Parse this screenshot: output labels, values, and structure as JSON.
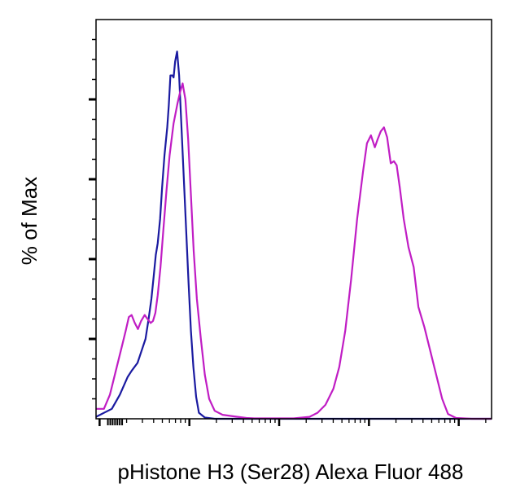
{
  "chart_data": {
    "type": "line",
    "title": "",
    "xlabel": "pHistone H3 (Ser28) Alexa Fluor 488",
    "ylabel": "% of Max",
    "x_scale": "log",
    "xlim": [
      0,
      100
    ],
    "ylim": [
      0,
      100
    ],
    "tick_labels_shown": false,
    "grid": false,
    "legend": "none",
    "series": [
      {
        "color": "#1a1aa0",
        "points": [
          [
            0.0,
            0.5
          ],
          [
            4.0,
            2.5
          ],
          [
            6.0,
            6.0
          ],
          [
            8.0,
            10.5
          ],
          [
            9.0,
            12.0
          ],
          [
            10.5,
            14.0
          ],
          [
            11.5,
            17.0
          ],
          [
            12.5,
            20.0
          ],
          [
            13.3,
            25.0
          ],
          [
            14.0,
            30.0
          ],
          [
            14.6,
            36.0
          ],
          [
            15.1,
            41.0
          ],
          [
            15.6,
            44.0
          ],
          [
            16.2,
            50.0
          ],
          [
            16.7,
            58.0
          ],
          [
            17.3,
            66.0
          ],
          [
            18.0,
            73.0
          ],
          [
            18.4,
            78.5
          ],
          [
            18.8,
            86.0
          ],
          [
            19.3,
            86.0
          ],
          [
            19.6,
            85.5
          ],
          [
            20.0,
            89.5
          ],
          [
            20.5,
            92.0
          ],
          [
            21.0,
            86.0
          ],
          [
            21.6,
            73.0
          ],
          [
            22.2,
            60.0
          ],
          [
            22.8,
            47.0
          ],
          [
            23.4,
            34.0
          ],
          [
            24.0,
            22.0
          ],
          [
            24.6,
            13.0
          ],
          [
            25.3,
            5.5
          ],
          [
            26.0,
            1.5
          ],
          [
            27.5,
            0.3
          ],
          [
            30.0,
            0.0
          ],
          [
            100.0,
            0.0
          ]
        ]
      },
      {
        "color": "#c01dc4",
        "points": [
          [
            0.0,
            2.5
          ],
          [
            2.0,
            2.5
          ],
          [
            3.5,
            6.0
          ],
          [
            5.0,
            12.0
          ],
          [
            6.5,
            18.0
          ],
          [
            7.5,
            22.0
          ],
          [
            8.3,
            25.5
          ],
          [
            9.0,
            26.0
          ],
          [
            9.8,
            24.0
          ],
          [
            10.6,
            22.5
          ],
          [
            11.4,
            24.5
          ],
          [
            12.3,
            26.0
          ],
          [
            13.0,
            25.0
          ],
          [
            13.8,
            24.0
          ],
          [
            14.4,
            24.5
          ],
          [
            15.0,
            26.5
          ],
          [
            15.6,
            31.0
          ],
          [
            16.3,
            38.0
          ],
          [
            17.0,
            47.0
          ],
          [
            17.8,
            57.0
          ],
          [
            18.6,
            66.0
          ],
          [
            19.6,
            74.0
          ],
          [
            20.6,
            79.0
          ],
          [
            21.3,
            82.0
          ],
          [
            21.9,
            84.0
          ],
          [
            22.6,
            80.0
          ],
          [
            23.3,
            70.0
          ],
          [
            24.0,
            56.0
          ],
          [
            24.7,
            42.0
          ],
          [
            25.5,
            30.0
          ],
          [
            26.5,
            20.0
          ],
          [
            27.5,
            11.0
          ],
          [
            28.6,
            5.0
          ],
          [
            30.0,
            2.0
          ],
          [
            32.0,
            1.0
          ],
          [
            35.0,
            0.6
          ],
          [
            38.0,
            0.2
          ],
          [
            40.0,
            0.1
          ],
          [
            50.0,
            0.1
          ],
          [
            54.0,
            0.5
          ],
          [
            56.0,
            1.5
          ],
          [
            58.0,
            3.5
          ],
          [
            60.0,
            7.5
          ],
          [
            61.5,
            13.0
          ],
          [
            63.0,
            22.0
          ],
          [
            64.5,
            35.0
          ],
          [
            66.0,
            50.0
          ],
          [
            67.5,
            62.0
          ],
          [
            68.5,
            69.0
          ],
          [
            69.5,
            71.0
          ],
          [
            70.5,
            68.0
          ],
          [
            71.2,
            70.0
          ],
          [
            72.0,
            72.0
          ],
          [
            72.8,
            73.0
          ],
          [
            73.6,
            70.5
          ],
          [
            74.5,
            64.0
          ],
          [
            75.3,
            64.5
          ],
          [
            76.0,
            63.5
          ],
          [
            76.8,
            58.0
          ],
          [
            77.8,
            50.0
          ],
          [
            79.0,
            43.0
          ],
          [
            80.3,
            38.0
          ],
          [
            81.5,
            28.0
          ],
          [
            83.0,
            23.0
          ],
          [
            84.5,
            17.0
          ],
          [
            86.0,
            11.0
          ],
          [
            87.5,
            5.0
          ],
          [
            89.0,
            1.2
          ],
          [
            91.0,
            0.2
          ],
          [
            95.0,
            0.0
          ],
          [
            100.0,
            0.0
          ]
        ]
      }
    ]
  }
}
